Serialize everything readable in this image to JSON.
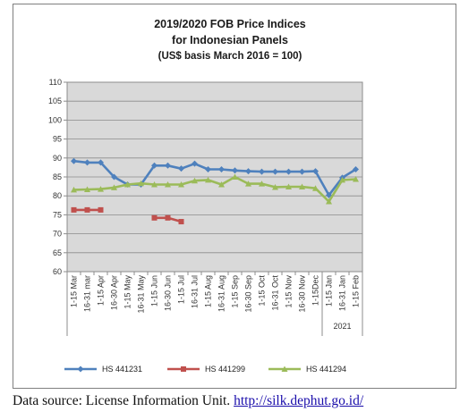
{
  "chart_data": {
    "type": "line",
    "title": [
      "2019/2020 FOB Price Indices",
      "for Indonesian Panels",
      "(US$ basis March 2016 = 100)"
    ],
    "xlabel": "",
    "ylabel": "",
    "categories": [
      "1-15 Mar",
      "16-31 mar",
      "1-15 Apr",
      "16-30 Apr",
      "1-15 May",
      "16-31 May",
      "1-15 Jun",
      "16-30 Jun",
      "1-15 Jul",
      "16-31 Jul",
      "1-15 Aug",
      "16-31 Aug",
      "1-15 Sep",
      "16-30 Sep",
      "1-15 Oct",
      "16-31 Oct",
      "1-15 Nov",
      "16-30 Nov",
      "1-15Dec",
      "1-15 Jan",
      "16-31 Jan",
      "1-15 Feb"
    ],
    "group_labels": [
      {
        "label": "2021",
        "from_index": 19,
        "to_index": 21
      }
    ],
    "ylim": [
      60,
      110
    ],
    "yticks": [
      "60",
      "65",
      "70",
      "75",
      "80",
      "85",
      "90",
      "95",
      "100",
      "105",
      "110"
    ],
    "grid": true,
    "legend_position": "bottom",
    "series": [
      {
        "name": "HS 441231",
        "color": "#4f81bd",
        "marker": "diamond",
        "values": [
          89.2,
          88.8,
          88.8,
          85.0,
          83.0,
          83.0,
          88.0,
          88.0,
          87.2,
          88.5,
          87.0,
          87.0,
          86.7,
          86.5,
          86.4,
          86.4,
          86.4,
          86.4,
          86.5,
          80.2,
          84.8,
          87.0
        ]
      },
      {
        "name": "HS 441299",
        "color": "#c0504d",
        "marker": "square",
        "values": [
          76.3,
          76.3,
          76.3,
          null,
          null,
          null,
          74.2,
          74.2,
          73.2,
          null,
          null,
          null,
          null,
          null,
          null,
          null,
          null,
          null,
          null,
          null,
          null,
          null
        ]
      },
      {
        "name": "HS 441294",
        "color": "#9bbb59",
        "marker": "triangle",
        "values": [
          81.6,
          81.7,
          81.8,
          82.2,
          83.0,
          83.3,
          83.0,
          83.0,
          83.0,
          84.0,
          84.2,
          83.0,
          85.0,
          83.2,
          83.2,
          82.3,
          82.4,
          82.4,
          82.0,
          78.5,
          84.2,
          84.4
        ]
      }
    ]
  },
  "source": {
    "text": "Data source: License Information Unit. ",
    "link": "http://silk.dephut.go.id/"
  }
}
